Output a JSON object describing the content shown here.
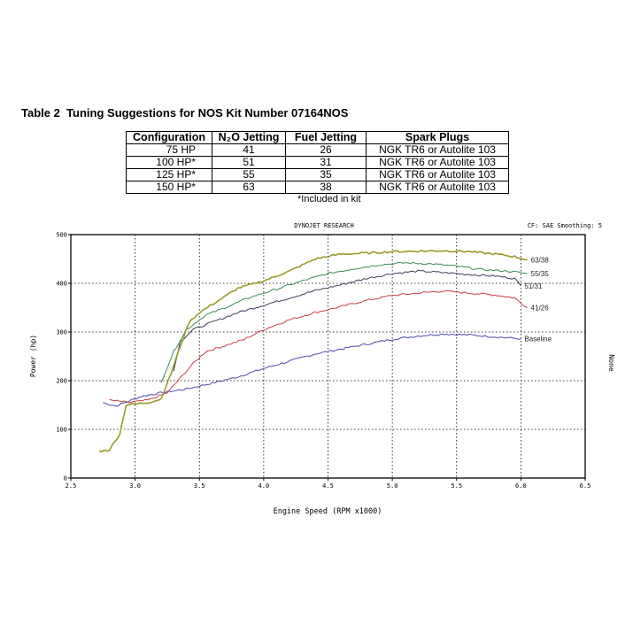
{
  "document": {
    "title_prefix": "Table 2",
    "title_text": "Tuning Suggestions for NOS Kit Number 07164NOS",
    "note": "*Included in kit"
  },
  "table": {
    "headers": [
      "Configuration",
      "N₂O Jetting",
      "Fuel Jetting",
      "Spark Plugs"
    ],
    "rows": [
      [
        "75 HP",
        "41",
        "26",
        "NGK TR6 or Autolite 103"
      ],
      [
        "100 HP*",
        "51",
        "31",
        "NGK TR6 or Autolite 103"
      ],
      [
        "125 HP*",
        "55",
        "35",
        "NGK TR6 or Autolite 103"
      ],
      [
        "150 HP*",
        "63",
        "38",
        "NGK TR6 or Autolite 103"
      ]
    ]
  },
  "chart_data": {
    "type": "line",
    "header_center": "DYNOJET RESEARCH",
    "header_right": "CF: SAE  Smoothing: 5",
    "xlabel": "Engine Speed (RPM x1000)",
    "ylabel": "Power (hp)",
    "side_label": "None",
    "xlim": [
      2.5,
      6.5
    ],
    "ylim": [
      0,
      500
    ],
    "xticks": [
      "2.5",
      "3.0",
      "3.5",
      "4.0",
      "4.5",
      "5.0",
      "5.5",
      "6.0",
      "6.5"
    ],
    "yticks": [
      "0",
      "100",
      "200",
      "300",
      "400",
      "500"
    ],
    "grid": true,
    "series": [
      {
        "name": "Baseline",
        "color": "#4a4ab0",
        "points": [
          [
            2.75,
            155
          ],
          [
            2.85,
            148
          ],
          [
            2.95,
            158
          ],
          [
            3.05,
            168
          ],
          [
            3.2,
            175
          ],
          [
            3.4,
            183
          ],
          [
            3.6,
            195
          ],
          [
            3.8,
            208
          ],
          [
            4.0,
            225
          ],
          [
            4.2,
            240
          ],
          [
            4.4,
            255
          ],
          [
            4.6,
            265
          ],
          [
            4.8,
            275
          ],
          [
            5.0,
            285
          ],
          [
            5.2,
            292
          ],
          [
            5.4,
            296
          ],
          [
            5.6,
            294
          ],
          [
            5.8,
            290
          ],
          [
            6.0,
            286
          ]
        ]
      },
      {
        "name": "41/26",
        "color": "#c84048",
        "points": [
          [
            2.8,
            160
          ],
          [
            2.95,
            155
          ],
          [
            3.1,
            160
          ],
          [
            3.25,
            175
          ],
          [
            3.35,
            205
          ],
          [
            3.45,
            235
          ],
          [
            3.55,
            260
          ],
          [
            3.7,
            272
          ],
          [
            3.85,
            285
          ],
          [
            4.0,
            305
          ],
          [
            4.2,
            325
          ],
          [
            4.4,
            340
          ],
          [
            4.6,
            352
          ],
          [
            4.8,
            365
          ],
          [
            5.0,
            375
          ],
          [
            5.2,
            380
          ],
          [
            5.4,
            384
          ],
          [
            5.6,
            380
          ],
          [
            5.8,
            376
          ],
          [
            5.95,
            370
          ],
          [
            6.05,
            350
          ]
        ]
      },
      {
        "name": "51/31",
        "color": "#3c3c5a",
        "points": [
          [
            3.3,
            220
          ],
          [
            3.35,
            280
          ],
          [
            3.45,
            305
          ],
          [
            3.6,
            320
          ],
          [
            3.8,
            340
          ],
          [
            4.0,
            355
          ],
          [
            4.2,
            370
          ],
          [
            4.4,
            385
          ],
          [
            4.6,
            397
          ],
          [
            4.8,
            410
          ],
          [
            5.0,
            420
          ],
          [
            5.2,
            425
          ],
          [
            5.4,
            422
          ],
          [
            5.6,
            418
          ],
          [
            5.8,
            415
          ],
          [
            5.95,
            410
          ],
          [
            6.0,
            395
          ]
        ]
      },
      {
        "name": "55/35",
        "color": "#3c8a54",
        "points": [
          [
            3.2,
            195
          ],
          [
            3.3,
            260
          ],
          [
            3.4,
            305
          ],
          [
            3.55,
            335
          ],
          [
            3.7,
            350
          ],
          [
            3.9,
            372
          ],
          [
            4.1,
            388
          ],
          [
            4.3,
            405
          ],
          [
            4.5,
            420
          ],
          [
            4.7,
            430
          ],
          [
            4.9,
            438
          ],
          [
            5.1,
            442
          ],
          [
            5.3,
            440
          ],
          [
            5.5,
            435
          ],
          [
            5.7,
            428
          ],
          [
            5.9,
            425
          ],
          [
            6.05,
            420
          ]
        ]
      },
      {
        "name": "63/38",
        "color": "#9a9a2a",
        "points": [
          [
            2.72,
            55
          ],
          [
            2.8,
            58
          ],
          [
            2.88,
            90
          ],
          [
            2.93,
            150
          ],
          [
            3.0,
            152
          ],
          [
            3.1,
            155
          ],
          [
            3.2,
            162
          ],
          [
            3.28,
            215
          ],
          [
            3.35,
            270
          ],
          [
            3.42,
            320
          ],
          [
            3.5,
            340
          ],
          [
            3.65,
            365
          ],
          [
            3.8,
            390
          ],
          [
            4.0,
            405
          ],
          [
            4.2,
            425
          ],
          [
            4.4,
            450
          ],
          [
            4.6,
            460
          ],
          [
            4.8,
            462
          ],
          [
            5.0,
            465
          ],
          [
            5.2,
            466
          ],
          [
            5.4,
            467
          ],
          [
            5.6,
            465
          ],
          [
            5.8,
            460
          ],
          [
            5.95,
            455
          ],
          [
            6.05,
            448
          ]
        ]
      }
    ]
  }
}
